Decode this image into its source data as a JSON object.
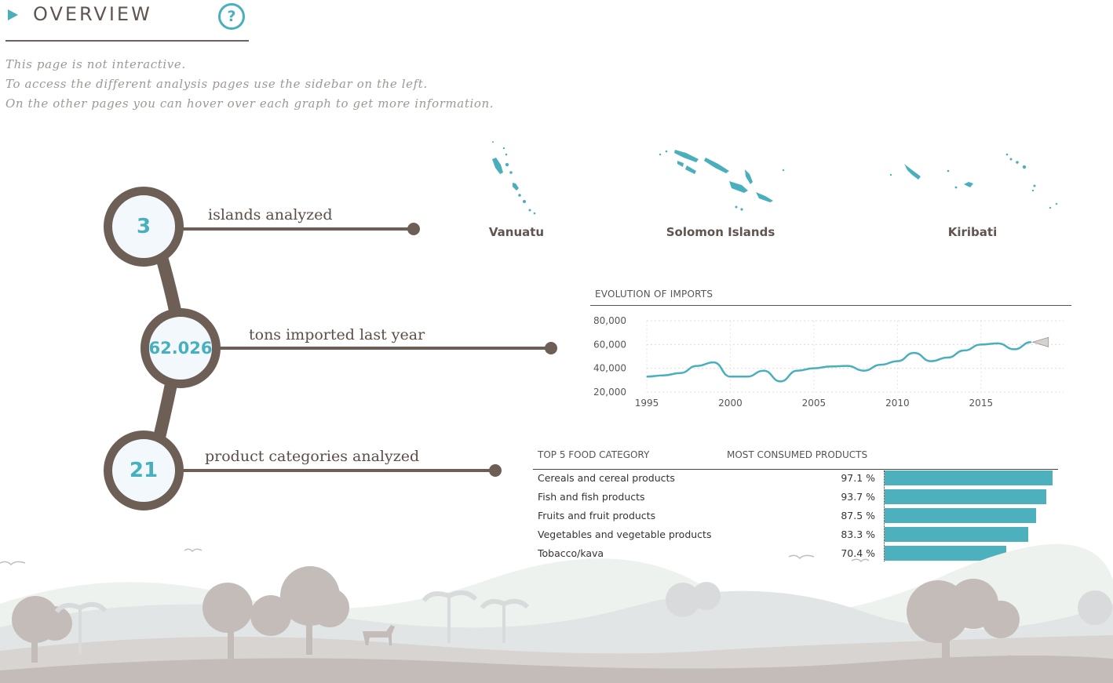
{
  "header": {
    "title": "OVERVIEW",
    "help_label": "?"
  },
  "intro": {
    "line1": "This page is not interactive.",
    "line2": "To access the different analysis pages use the sidebar on the left.",
    "line3": "On the other pages you can hover over each graph to get more information."
  },
  "kpis": [
    {
      "value": "3",
      "label": "islands analyzed"
    },
    {
      "value": "62.026",
      "label": "tons imported last year"
    },
    {
      "value": "21",
      "label": "product categories analyzed"
    }
  ],
  "islands": [
    "Vanuatu",
    "Solomon Islands",
    "Kiribati"
  ],
  "colors": {
    "accent": "#4aafbd",
    "brown": "#6d5e56",
    "bar": "#4cb1bc"
  },
  "chart_data": [
    {
      "type": "line",
      "title": "EVOLUTION OF IMPORTS",
      "x": [
        1995,
        1996,
        1997,
        1998,
        1999,
        2000,
        2001,
        2002,
        2003,
        2004,
        2005,
        2006,
        2007,
        2008,
        2009,
        2010,
        2011,
        2012,
        2013,
        2014,
        2015,
        2016,
        2017,
        2018
      ],
      "series": [
        {
          "values": [
            33000,
            34000,
            36000,
            42000,
            45000,
            33000,
            33000,
            38000,
            29000,
            38000,
            40000,
            41500,
            42000,
            38000,
            43000,
            46000,
            53000,
            46000,
            49000,
            55000,
            60000,
            61000,
            56000,
            62000
          ]
        }
      ],
      "xticks": [
        "1995",
        "2000",
        "2005",
        "2010",
        "2015"
      ],
      "yticks": [
        "80,000",
        "60,000",
        "40,000",
        "20,000"
      ],
      "ylim": [
        20000,
        80000
      ],
      "grid": true
    },
    {
      "type": "bar",
      "title": "TOP 5 FOOD CATEGORY",
      "value_header": "MOST CONSUMED PRODUCTS",
      "categories": [
        "Cereals and cereal products",
        "Fish and fish products",
        "Fruits and fruit products",
        "Vegetables and vegetable products",
        "Tobacco/kava"
      ],
      "values": [
        97.1,
        93.7,
        87.5,
        83.3,
        70.4
      ],
      "labels": [
        "97.1 %",
        "93.7 %",
        "87.5 %",
        "83.3 %",
        "70.4 %"
      ],
      "orientation": "horizontal"
    }
  ]
}
